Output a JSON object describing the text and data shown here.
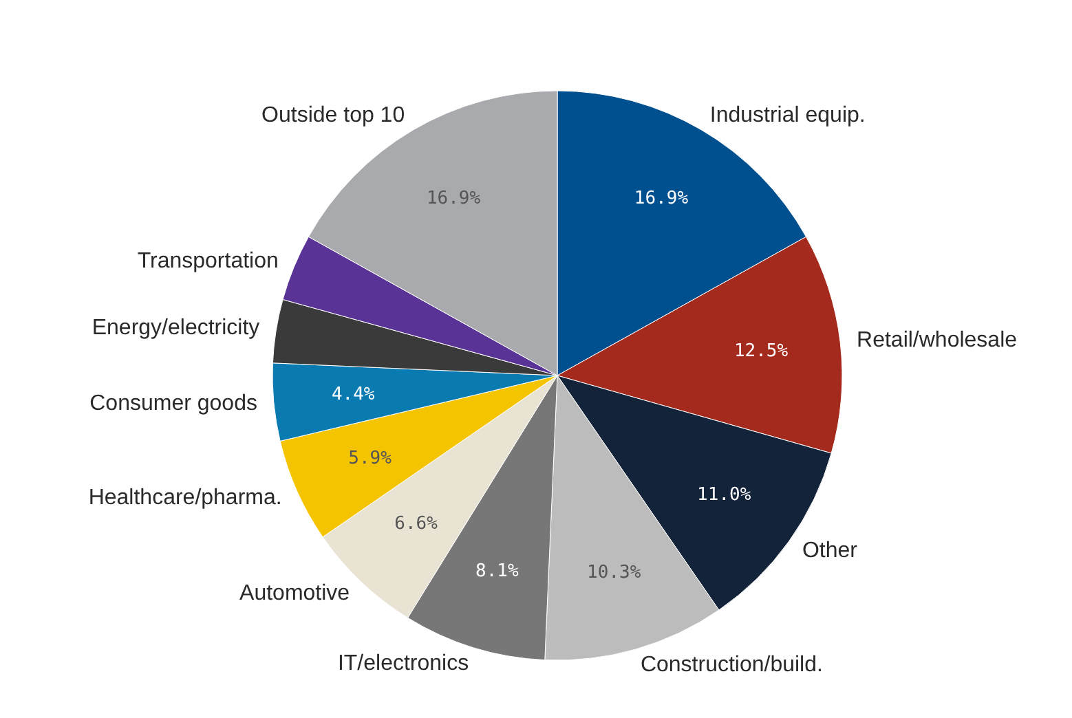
{
  "chart_data": {
    "type": "pie",
    "categories": [
      "Industrial equip.",
      "Retail/wholesale",
      "Other",
      "Construction/build.",
      "IT/electronics",
      "Automotive",
      "Healthcare/pharma.",
      "Consumer goods",
      "Energy/electricity",
      "Transportation",
      "Outside top 10"
    ],
    "values": [
      16.9,
      12.5,
      11.0,
      10.3,
      8.1,
      6.6,
      5.9,
      4.4,
      3.6,
      3.8,
      16.9
    ],
    "colors": [
      "#00508f",
      "#a52a1e",
      "#13233a",
      "#bcbcbc",
      "#777777",
      "#e8e3d3",
      "#f5c400",
      "#0a7bb0",
      "#3a3a3a",
      "#5a3396",
      "#a8aaae"
    ],
    "value_labels": [
      "16.9%",
      "12.5%",
      "11.0%",
      "10.3%",
      "8.1%",
      "6.6%",
      "5.9%",
      "4.4%",
      null,
      null,
      "16.9%"
    ]
  }
}
